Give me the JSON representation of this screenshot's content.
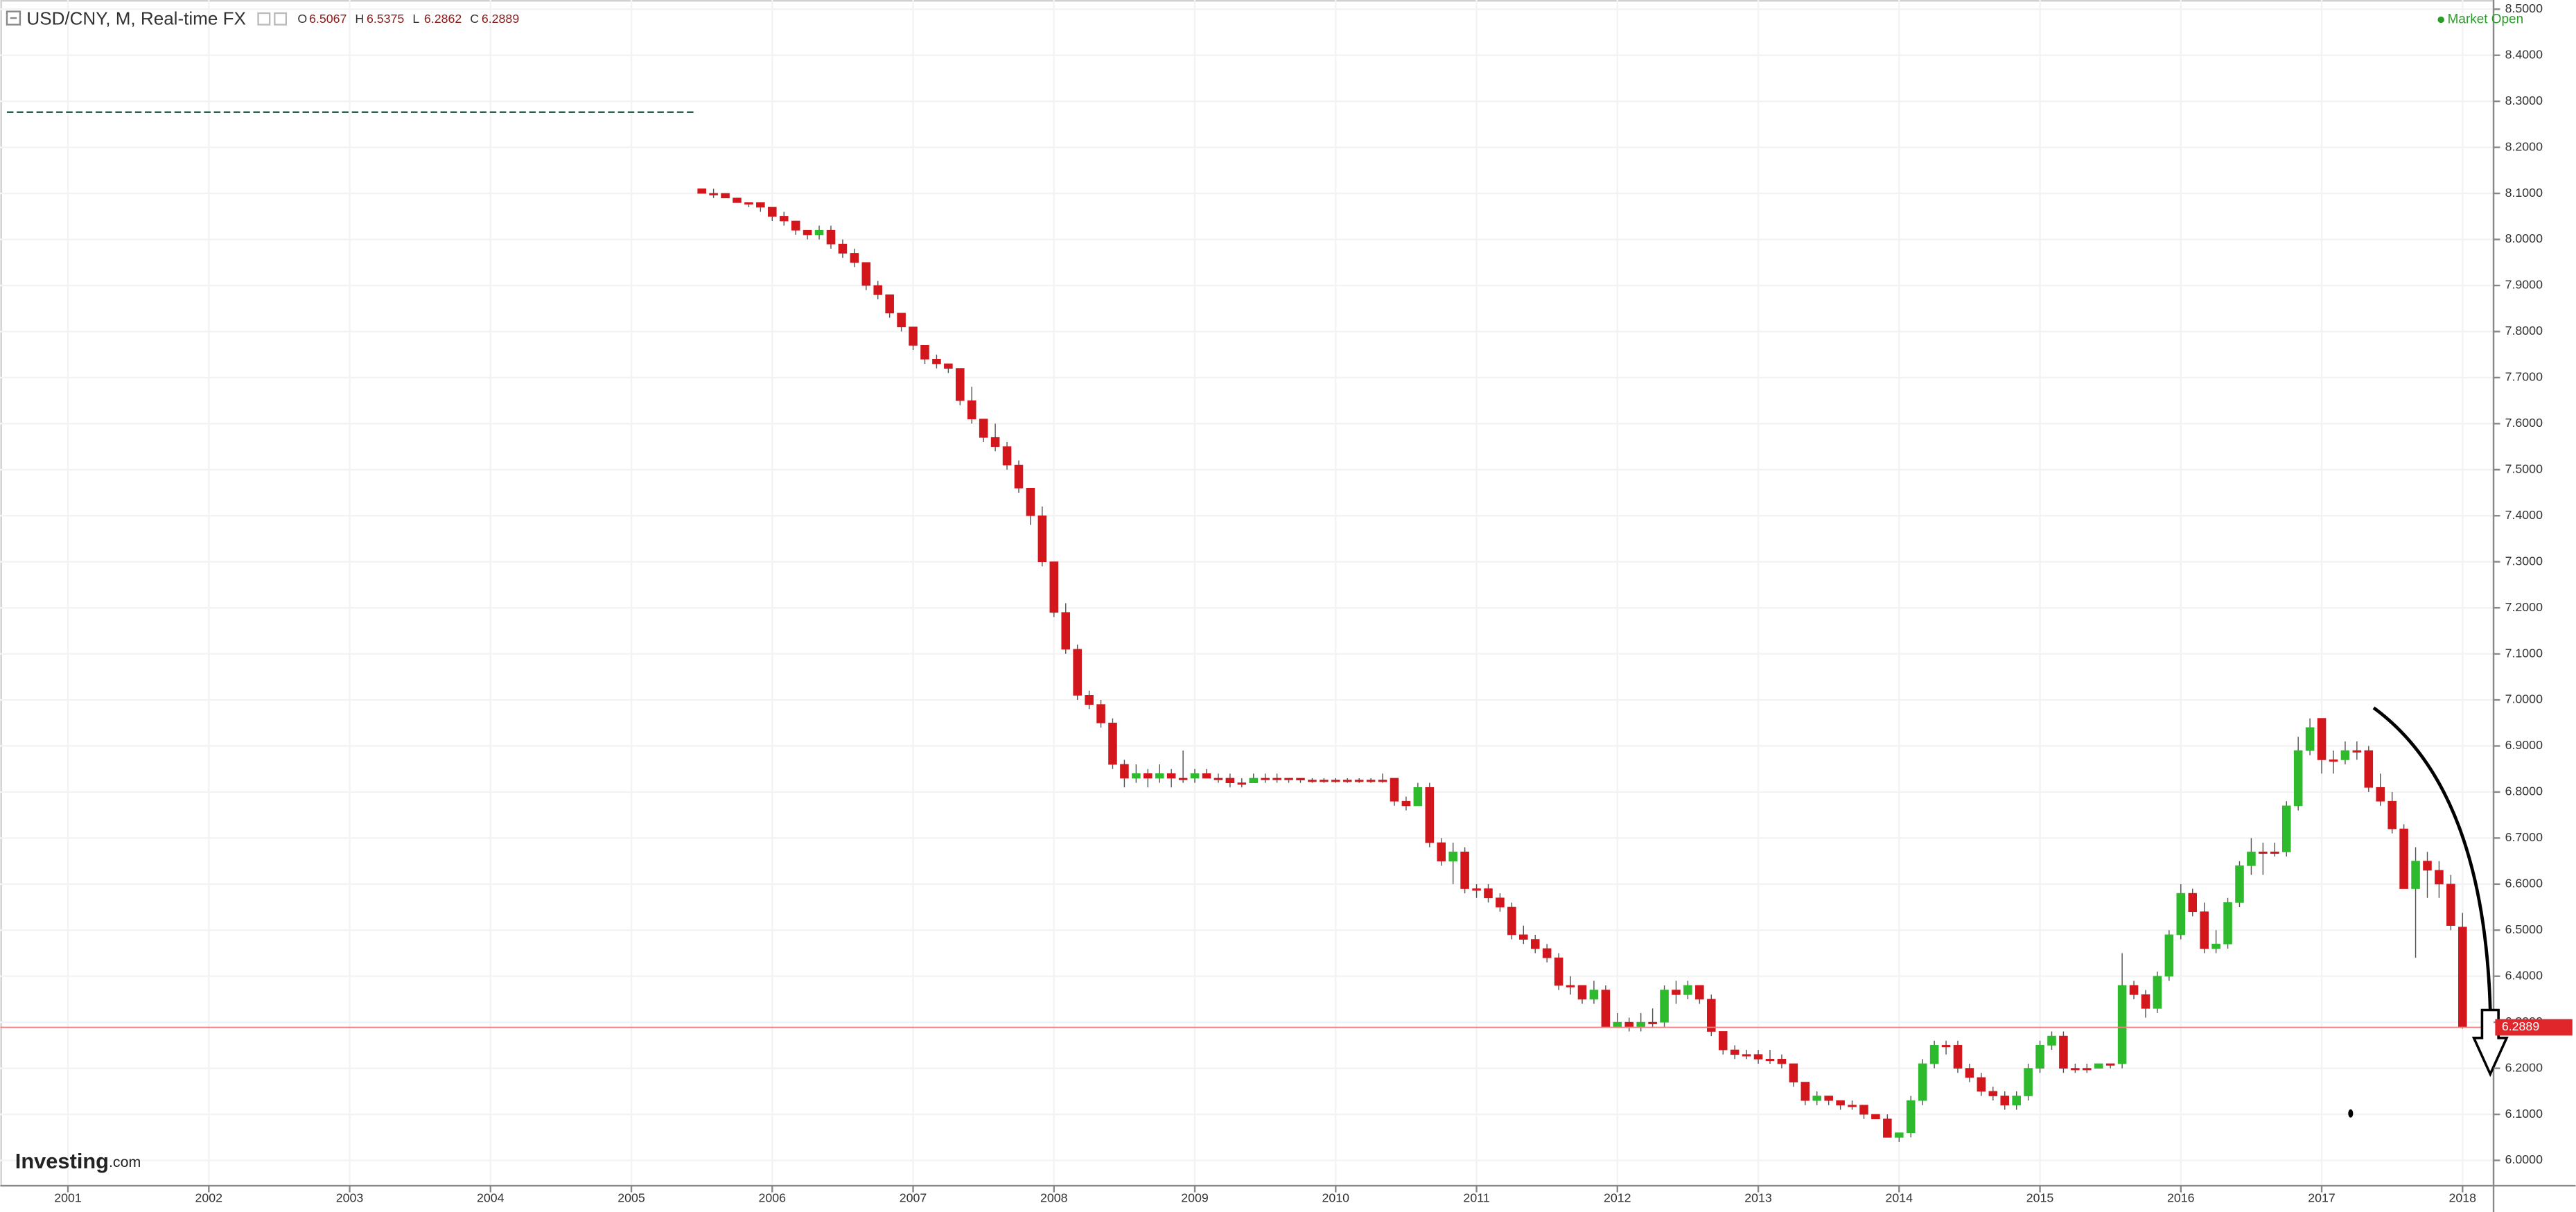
{
  "chart_data": {
    "type": "candlestick",
    "title": "USD/CNY, M, Real-time FX",
    "ohlc_labels": [
      "O",
      "H",
      "L",
      "C"
    ],
    "status": "Market Open",
    "logo": "Investing",
    "logo_suffix": ".com",
    "up_color": "#2dbb2d",
    "down_color": "#d3161c",
    "grid": true,
    "xlim": [
      2000.52,
      2018.22
    ],
    "xticks": [
      2001,
      2002,
      2003,
      2004,
      2005,
      2006,
      2007,
      2008,
      2009,
      2010,
      2011,
      2012,
      2013,
      2014,
      2015,
      2016,
      2017,
      2018
    ],
    "ylim": [
      5.945,
      8.52
    ],
    "yticks": [
      {
        "value": 6.0,
        "label": "6.0000"
      },
      {
        "value": 6.1,
        "label": "6.1000"
      },
      {
        "value": 6.2,
        "label": "6.2000"
      },
      {
        "value": 6.3,
        "label": "6.3000"
      },
      {
        "value": 6.4,
        "label": "6.4000"
      },
      {
        "value": 6.5,
        "label": "6.5000"
      },
      {
        "value": 6.6,
        "label": "6.6000"
      },
      {
        "value": 6.7,
        "label": "6.7000"
      },
      {
        "value": 6.8,
        "label": "6.8000"
      },
      {
        "value": 6.9,
        "label": "6.9000"
      },
      {
        "value": 7.0,
        "label": "7.0000"
      },
      {
        "value": 7.1,
        "label": "7.1000"
      },
      {
        "value": 7.2,
        "label": "7.2000"
      },
      {
        "value": 7.3,
        "label": "7.3000"
      },
      {
        "value": 7.4,
        "label": "7.4000"
      },
      {
        "value": 7.5,
        "label": "7.5000"
      },
      {
        "value": 7.6,
        "label": "7.6000"
      },
      {
        "value": 7.7,
        "label": "7.7000"
      },
      {
        "value": 7.8,
        "label": "7.8000"
      },
      {
        "value": 7.9,
        "label": "7.9000"
      },
      {
        "value": 8.0,
        "label": "8.0000"
      },
      {
        "value": 8.1,
        "label": "8.1000"
      },
      {
        "value": 8.2,
        "label": "8.2000"
      },
      {
        "value": 8.3,
        "label": "8.3000"
      },
      {
        "value": 8.4,
        "label": "8.4000"
      },
      {
        "value": 8.5,
        "label": "8.5000"
      }
    ],
    "peg_line": 8.2765,
    "ohlc": [
      [
        8.11,
        8.11,
        8.1,
        8.1
      ],
      [
        8.1,
        8.11,
        8.09,
        8.1
      ],
      [
        8.1,
        8.1,
        8.09,
        8.09
      ],
      [
        8.09,
        8.09,
        8.08,
        8.08
      ],
      [
        8.08,
        8.08,
        8.07,
        8.08
      ],
      [
        8.08,
        8.08,
        8.06,
        8.07
      ],
      [
        8.07,
        8.07,
        8.04,
        8.05
      ],
      [
        8.05,
        8.06,
        8.03,
        8.04
      ],
      [
        8.04,
        8.04,
        8.01,
        8.02
      ],
      [
        8.02,
        8.02,
        8.0,
        8.01
      ],
      [
        8.01,
        8.03,
        8.0,
        8.02
      ],
      [
        8.02,
        8.03,
        7.98,
        7.99
      ],
      [
        7.99,
        8.0,
        7.96,
        7.97
      ],
      [
        7.97,
        7.98,
        7.94,
        7.95
      ],
      [
        7.95,
        7.95,
        7.89,
        7.9
      ],
      [
        7.9,
        7.91,
        7.87,
        7.88
      ],
      [
        7.88,
        7.88,
        7.83,
        7.84
      ],
      [
        7.84,
        7.84,
        7.8,
        7.81
      ],
      [
        7.81,
        7.81,
        7.76,
        7.77
      ],
      [
        7.77,
        7.77,
        7.73,
        7.74
      ],
      [
        7.74,
        7.75,
        7.72,
        7.73
      ],
      [
        7.73,
        7.73,
        7.71,
        7.72
      ],
      [
        7.72,
        7.72,
        7.64,
        7.65
      ],
      [
        7.65,
        7.68,
        7.6,
        7.61
      ],
      [
        7.61,
        7.61,
        7.56,
        7.57
      ],
      [
        7.57,
        7.6,
        7.54,
        7.55
      ],
      [
        7.55,
        7.56,
        7.5,
        7.51
      ],
      [
        7.51,
        7.52,
        7.45,
        7.46
      ],
      [
        7.46,
        7.46,
        7.38,
        7.4
      ],
      [
        7.4,
        7.42,
        7.29,
        7.3
      ],
      [
        7.3,
        7.3,
        7.18,
        7.19
      ],
      [
        7.19,
        7.21,
        7.1,
        7.11
      ],
      [
        7.11,
        7.12,
        7.0,
        7.01
      ],
      [
        7.01,
        7.02,
        6.98,
        6.99
      ],
      [
        6.99,
        7.0,
        6.94,
        6.95
      ],
      [
        6.95,
        6.96,
        6.85,
        6.86
      ],
      [
        6.86,
        6.87,
        6.81,
        6.83
      ],
      [
        6.83,
        6.86,
        6.82,
        6.84
      ],
      [
        6.84,
        6.85,
        6.81,
        6.83
      ],
      [
        6.83,
        6.86,
        6.82,
        6.84
      ],
      [
        6.84,
        6.85,
        6.81,
        6.83
      ],
      [
        6.83,
        6.89,
        6.82,
        6.83
      ],
      [
        6.83,
        6.85,
        6.82,
        6.84
      ],
      [
        6.84,
        6.85,
        6.83,
        6.83
      ],
      [
        6.83,
        6.84,
        6.82,
        6.83
      ],
      [
        6.83,
        6.84,
        6.81,
        6.82
      ],
      [
        6.82,
        6.83,
        6.81,
        6.82
      ],
      [
        6.82,
        6.84,
        6.82,
        6.83
      ],
      [
        6.83,
        6.84,
        6.82,
        6.83
      ],
      [
        6.83,
        6.84,
        6.82,
        6.83
      ],
      [
        6.83,
        6.83,
        6.82,
        6.83
      ],
      [
        6.83,
        6.83,
        6.82,
        6.826
      ],
      [
        6.826,
        6.83,
        6.82,
        6.826
      ],
      [
        6.826,
        6.83,
        6.82,
        6.826
      ],
      [
        6.826,
        6.83,
        6.82,
        6.826
      ],
      [
        6.826,
        6.83,
        6.82,
        6.826
      ],
      [
        6.826,
        6.83,
        6.82,
        6.826
      ],
      [
        6.826,
        6.83,
        6.82,
        6.826
      ],
      [
        6.826,
        6.84,
        6.82,
        6.826
      ],
      [
        6.83,
        6.83,
        6.77,
        6.78
      ],
      [
        6.78,
        6.79,
        6.76,
        6.77
      ],
      [
        6.77,
        6.82,
        6.77,
        6.81
      ],
      [
        6.81,
        6.82,
        6.68,
        6.69
      ],
      [
        6.69,
        6.7,
        6.64,
        6.65
      ],
      [
        6.65,
        6.69,
        6.6,
        6.67
      ],
      [
        6.67,
        6.68,
        6.58,
        6.59
      ],
      [
        6.59,
        6.6,
        6.57,
        6.59
      ],
      [
        6.59,
        6.6,
        6.56,
        6.57
      ],
      [
        6.57,
        6.58,
        6.54,
        6.55
      ],
      [
        6.55,
        6.56,
        6.48,
        6.49
      ],
      [
        6.49,
        6.51,
        6.47,
        6.48
      ],
      [
        6.48,
        6.49,
        6.45,
        6.46
      ],
      [
        6.46,
        6.47,
        6.43,
        6.44
      ],
      [
        6.44,
        6.45,
        6.37,
        6.38
      ],
      [
        6.38,
        6.4,
        6.36,
        6.38
      ],
      [
        6.38,
        6.38,
        6.34,
        6.35
      ],
      [
        6.35,
        6.39,
        6.34,
        6.37
      ],
      [
        6.37,
        6.38,
        6.29,
        6.29
      ],
      [
        6.29,
        6.32,
        6.29,
        6.3
      ],
      [
        6.3,
        6.31,
        6.28,
        6.29
      ],
      [
        6.29,
        6.32,
        6.28,
        6.3
      ],
      [
        6.3,
        6.33,
        6.29,
        6.3
      ],
      [
        6.3,
        6.38,
        6.29,
        6.37
      ],
      [
        6.37,
        6.39,
        6.34,
        6.36
      ],
      [
        6.36,
        6.39,
        6.35,
        6.38
      ],
      [
        6.38,
        6.38,
        6.34,
        6.35
      ],
      [
        6.35,
        6.36,
        6.27,
        6.28
      ],
      [
        6.28,
        6.28,
        6.23,
        6.24
      ],
      [
        6.24,
        6.25,
        6.22,
        6.23
      ],
      [
        6.23,
        6.24,
        6.22,
        6.23
      ],
      [
        6.23,
        6.24,
        6.21,
        6.22
      ],
      [
        6.22,
        6.24,
        6.21,
        6.22
      ],
      [
        6.22,
        6.23,
        6.2,
        6.21
      ],
      [
        6.21,
        6.21,
        6.16,
        6.17
      ],
      [
        6.17,
        6.17,
        6.12,
        6.13
      ],
      [
        6.13,
        6.15,
        6.12,
        6.14
      ],
      [
        6.14,
        6.14,
        6.12,
        6.13
      ],
      [
        6.13,
        6.13,
        6.11,
        6.12
      ],
      [
        6.12,
        6.13,
        6.11,
        6.12
      ],
      [
        6.12,
        6.12,
        6.09,
        6.1
      ],
      [
        6.1,
        6.1,
        6.09,
        6.09
      ],
      [
        6.09,
        6.1,
        6.05,
        6.05
      ],
      [
        6.05,
        6.06,
        6.04,
        6.06
      ],
      [
        6.06,
        6.14,
        6.05,
        6.13
      ],
      [
        6.13,
        6.22,
        6.12,
        6.21
      ],
      [
        6.21,
        6.26,
        6.2,
        6.25
      ],
      [
        6.25,
        6.26,
        6.23,
        6.25
      ],
      [
        6.25,
        6.26,
        6.19,
        6.2
      ],
      [
        6.2,
        6.21,
        6.17,
        6.18
      ],
      [
        6.18,
        6.19,
        6.14,
        6.15
      ],
      [
        6.15,
        6.16,
        6.13,
        6.14
      ],
      [
        6.14,
        6.15,
        6.11,
        6.12
      ],
      [
        6.12,
        6.15,
        6.11,
        6.14
      ],
      [
        6.14,
        6.21,
        6.13,
        6.2
      ],
      [
        6.2,
        6.26,
        6.19,
        6.25
      ],
      [
        6.25,
        6.28,
        6.24,
        6.27
      ],
      [
        6.27,
        6.28,
        6.19,
        6.2
      ],
      [
        6.2,
        6.21,
        6.19,
        6.2
      ],
      [
        6.2,
        6.21,
        6.19,
        6.2
      ],
      [
        6.2,
        6.21,
        6.2,
        6.21
      ],
      [
        6.21,
        6.21,
        6.2,
        6.21
      ],
      [
        6.21,
        6.45,
        6.2,
        6.38
      ],
      [
        6.38,
        6.39,
        6.35,
        6.36
      ],
      [
        6.36,
        6.37,
        6.31,
        6.33
      ],
      [
        6.33,
        6.41,
        6.32,
        6.4
      ],
      [
        6.4,
        6.5,
        6.39,
        6.49
      ],
      [
        6.49,
        6.6,
        6.48,
        6.58
      ],
      [
        6.58,
        6.59,
        6.53,
        6.54
      ],
      [
        6.54,
        6.56,
        6.45,
        6.46
      ],
      [
        6.46,
        6.5,
        6.45,
        6.47
      ],
      [
        6.47,
        6.57,
        6.46,
        6.56
      ],
      [
        6.56,
        6.65,
        6.55,
        6.64
      ],
      [
        6.64,
        6.7,
        6.62,
        6.67
      ],
      [
        6.67,
        6.69,
        6.62,
        6.67
      ],
      [
        6.67,
        6.69,
        6.66,
        6.67
      ],
      [
        6.67,
        6.78,
        6.66,
        6.77
      ],
      [
        6.77,
        6.92,
        6.76,
        6.89
      ],
      [
        6.89,
        6.96,
        6.88,
        6.94
      ],
      [
        6.96,
        6.96,
        6.84,
        6.87
      ],
      [
        6.87,
        6.89,
        6.84,
        6.87
      ],
      [
        6.87,
        6.91,
        6.86,
        6.89
      ],
      [
        6.89,
        6.91,
        6.87,
        6.89
      ],
      [
        6.89,
        6.9,
        6.8,
        6.81
      ],
      [
        6.81,
        6.84,
        6.77,
        6.78
      ],
      [
        6.78,
        6.8,
        6.71,
        6.72
      ],
      [
        6.72,
        6.73,
        6.59,
        6.59
      ],
      [
        6.59,
        6.68,
        6.44,
        6.65
      ],
      [
        6.65,
        6.67,
        6.57,
        6.63
      ],
      [
        6.63,
        6.65,
        6.57,
        6.6
      ],
      [
        6.6,
        6.62,
        6.5,
        6.51
      ],
      [
        6.5067,
        6.5375,
        6.2862,
        6.2889
      ]
    ]
  }
}
